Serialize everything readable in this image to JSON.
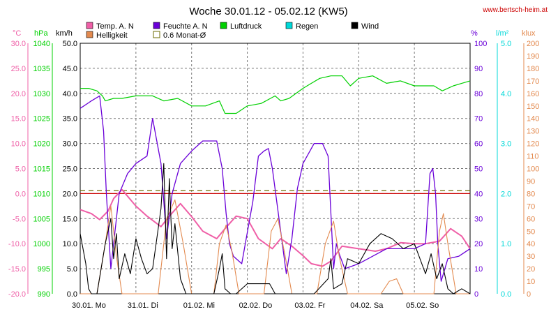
{
  "header": {
    "title": "Woche 30.01.12 - 05.02.12 (KW5)",
    "url": "www.bertsch-heim.at"
  },
  "colors": {
    "temp": "#ef5fa7",
    "helligkeit": "#e38a4f",
    "feuchte": "#6a00d8",
    "monat": "#6b6b00",
    "luftdruck": "#00d000",
    "regen": "#00d8d8",
    "wind": "#000000",
    "redline": "#cc0000"
  },
  "chart_data": {
    "type": "line",
    "title": "Woche 30.01.12 - 05.02.12 (KW5)",
    "x_labels": [
      "30.01.  Mo",
      "31.01.  Di",
      "01.02.  Mi",
      "02.02.  Do",
      "03.02.  Fr",
      "04.02.  Sa",
      "05.02.  So"
    ],
    "x_unit_note": "day index 0–7",
    "axes": {
      "temp": {
        "unit": "°C",
        "min": -20,
        "max": 30,
        "ticks": [
          "30.0",
          "25.0",
          "20.0",
          "15.0",
          "10.0",
          "5.0",
          "0.0",
          "-5.0",
          "-10.0",
          "-15.0",
          "-20.0"
        ]
      },
      "pressure": {
        "unit": "hPa",
        "min": 990,
        "max": 1040,
        "ticks": [
          "1040",
          "1035",
          "1030",
          "1025",
          "1020",
          "1015",
          "1010",
          "1005",
          "1000",
          "995",
          "990"
        ]
      },
      "wind": {
        "unit": "km/h",
        "min": 0,
        "max": 50,
        "ticks": [
          "50.0",
          "45.0",
          "40.0",
          "35.0",
          "30.0",
          "25.0",
          "20.0",
          "15.0",
          "10.0",
          "5.0",
          "0.0"
        ]
      },
      "humidity": {
        "unit": "%",
        "min": 0,
        "max": 100,
        "ticks": [
          "100",
          "90",
          "80",
          "70",
          "60",
          "50",
          "40",
          "30",
          "20",
          "10",
          "0"
        ]
      },
      "rain": {
        "unit": "l/m²",
        "min": 0,
        "max": 5,
        "ticks": [
          "5.0",
          "4.0",
          "3.0",
          "2.0",
          "1.0",
          "0.0"
        ]
      },
      "brightness": {
        "unit": "klux",
        "min": 0,
        "max": 200,
        "ticks": [
          "200",
          "190",
          "180",
          "170",
          "160",
          "150",
          "140",
          "130",
          "120",
          "110",
          "100",
          "90",
          "80",
          "70",
          "60",
          "50",
          "40",
          "30",
          "20",
          "10",
          "0"
        ]
      }
    },
    "legend": [
      {
        "key": "temp",
        "label": "Temp. A. N"
      },
      {
        "key": "feuchte",
        "label": "Feuchte A. N"
      },
      {
        "key": "luftdruck",
        "label": "Luftdruck"
      },
      {
        "key": "regen",
        "label": "Regen"
      },
      {
        "key": "wind",
        "label": "Wind"
      },
      {
        "key": "helligkeit",
        "label": "Helligkeit"
      },
      {
        "key": "monat",
        "label": "0.6 Monat-Ø"
      }
    ],
    "reference_lines": [
      {
        "name": "0.6 Monat-Ø",
        "axis": "temp",
        "value": 0.6
      },
      {
        "name": "zero",
        "axis": "temp",
        "value": 0.0
      }
    ],
    "series": [
      {
        "key": "luftdruck",
        "name": "Luftdruck",
        "axis": "pressure",
        "x": [
          0,
          0.15,
          0.3,
          0.4,
          0.45,
          0.6,
          0.75,
          1,
          1.3,
          1.5,
          1.75,
          2,
          2.25,
          2.5,
          2.6,
          2.8,
          3,
          3.25,
          3.5,
          3.6,
          3.75,
          4,
          4.15,
          4.3,
          4.5,
          4.7,
          4.85,
          5,
          5.25,
          5.5,
          5.75,
          6,
          6.2,
          6.35,
          6.5,
          6.6,
          6.7,
          6.85,
          7
        ],
        "y": [
          1031,
          1031,
          1030.5,
          1029.5,
          1028.5,
          1029,
          1029,
          1029.5,
          1029.5,
          1028.5,
          1029,
          1027.5,
          1027.5,
          1028.5,
          1026,
          1026,
          1027.5,
          1028,
          1029.5,
          1028.5,
          1029,
          1031,
          1032,
          1033,
          1033.5,
          1033.5,
          1031.5,
          1033,
          1033.5,
          1032,
          1032.5,
          1031.5,
          1031.5,
          1031.5,
          1030.5,
          1031,
          1031.5,
          1032,
          1032.5
        ]
      },
      {
        "key": "temp",
        "name": "Temp. A. N",
        "axis": "temp",
        "x": [
          0,
          0.2,
          0.35,
          0.5,
          0.6,
          0.75,
          1,
          1.2,
          1.45,
          1.6,
          1.8,
          2,
          2.2,
          2.45,
          2.6,
          2.8,
          3,
          3.2,
          3.45,
          3.6,
          3.8,
          4,
          4.15,
          4.35,
          4.5,
          4.7,
          5,
          5.3,
          5.5,
          5.75,
          6,
          6.2,
          6.45,
          6.65,
          6.85,
          7
        ],
        "y": [
          -3.2,
          -4,
          -5.2,
          -3.5,
          -1,
          0.8,
          -2.5,
          -4.5,
          -6.6,
          -4.5,
          -2,
          -4.6,
          -7.5,
          -9,
          -7,
          -4.5,
          -5,
          -9,
          -11,
          -9,
          -10.5,
          -12.4,
          -14,
          -14.5,
          -13.5,
          -10.5,
          -11,
          -11.5,
          -11,
          -9.8,
          -10,
          -10,
          -9.5,
          -7,
          -8.5,
          -11
        ]
      },
      {
        "key": "feuchte",
        "name": "Feuchte A. N",
        "axis": "humidity",
        "x": [
          0,
          0.2,
          0.35,
          0.42,
          0.47,
          0.55,
          0.7,
          0.85,
          1,
          1.2,
          1.3,
          1.45,
          1.55,
          1.65,
          1.8,
          2,
          2.2,
          2.45,
          2.55,
          2.62,
          2.68,
          2.75,
          2.9,
          3.1,
          3.2,
          3.3,
          3.38,
          3.45,
          3.7,
          3.8,
          3.9,
          4,
          4.2,
          4.35,
          4.45,
          4.55,
          4.6,
          4.65,
          4.75,
          5,
          5.5,
          6,
          6.2,
          6.28,
          6.33,
          6.38,
          6.42,
          6.48,
          6.6,
          6.8,
          7
        ],
        "y": [
          74,
          77,
          79,
          65,
          40,
          10,
          40,
          48,
          52,
          55,
          70,
          52,
          22,
          40,
          52,
          57,
          61,
          61,
          50,
          32,
          20,
          15,
          12,
          37,
          55,
          57,
          58,
          50,
          8,
          22,
          42,
          52,
          60,
          60,
          55,
          10,
          20,
          16,
          10,
          12,
          18,
          18,
          20,
          48,
          50,
          40,
          20,
          5,
          14,
          15,
          18
        ]
      },
      {
        "key": "helligkeit",
        "name": "Helligkeit",
        "axis": "brightness",
        "x": [
          0,
          0.3,
          0.45,
          0.55,
          0.65,
          0.75,
          1,
          1.4,
          1.55,
          1.7,
          1.85,
          2,
          2.4,
          2.5,
          2.62,
          2.72,
          2.85,
          3,
          3.3,
          3.43,
          3.55,
          3.68,
          3.8,
          4,
          4.25,
          4.4,
          4.55,
          4.65,
          4.8,
          5,
          5.4,
          5.55,
          5.68,
          5.8,
          6,
          6.35,
          6.45,
          6.52,
          6.6,
          6.75,
          7
        ],
        "y": [
          0,
          0,
          40,
          70,
          30,
          0,
          0,
          0,
          60,
          75,
          40,
          0,
          0,
          40,
          55,
          35,
          0,
          0,
          0,
          50,
          60,
          30,
          0,
          0,
          0,
          40,
          58,
          30,
          0,
          0,
          0,
          10,
          12,
          0,
          0,
          0,
          50,
          64,
          40,
          0,
          0
        ]
      },
      {
        "key": "wind",
        "name": "Wind",
        "axis": "wind",
        "x": [
          0,
          0.1,
          0.15,
          0.2,
          0.3,
          0.45,
          0.55,
          0.6,
          0.65,
          0.7,
          0.8,
          0.9,
          1,
          1.1,
          1.2,
          1.3,
          1.45,
          1.5,
          1.55,
          1.6,
          1.65,
          1.7,
          1.8,
          1.9,
          2,
          2.2,
          2.4,
          2.5,
          2.55,
          2.6,
          2.7,
          2.8,
          3,
          3.2,
          3.4,
          3.5,
          3.6,
          3.7,
          3.8,
          4,
          4.2,
          4.45,
          4.5,
          4.55,
          4.7,
          4.8,
          5,
          5.2,
          5.4,
          5.6,
          5.8,
          6,
          6.1,
          6.2,
          6.3,
          6.4,
          6.5,
          6.6,
          6.7,
          6.85,
          7
        ],
        "y": [
          12,
          6,
          1,
          0,
          0,
          10,
          15,
          7,
          12,
          3,
          8,
          4,
          11,
          7,
          4,
          5,
          17,
          26,
          7,
          23,
          9,
          14,
          3,
          0,
          0,
          0,
          0,
          5,
          8,
          1,
          0,
          0,
          2,
          2,
          2,
          0,
          0,
          0,
          0,
          0,
          0,
          3,
          7,
          1,
          2,
          7,
          6,
          10,
          12,
          11,
          9,
          10,
          7,
          4,
          8,
          3,
          6,
          1,
          0,
          1,
          0
        ]
      }
    ]
  }
}
